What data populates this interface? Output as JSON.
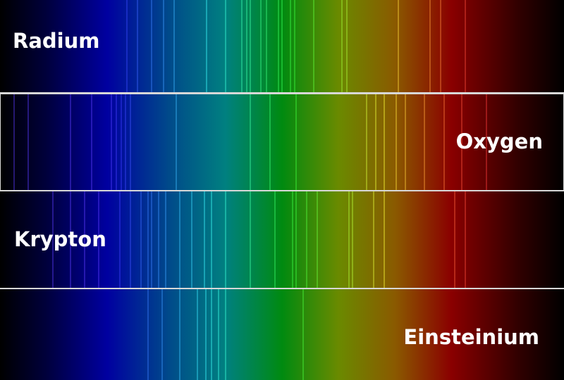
{
  "panels": [
    {
      "label": "Radium"
    },
    {
      "label": "Oxygen"
    },
    {
      "label": "Krypton"
    },
    {
      "label": "Einsteinium"
    }
  ]
}
